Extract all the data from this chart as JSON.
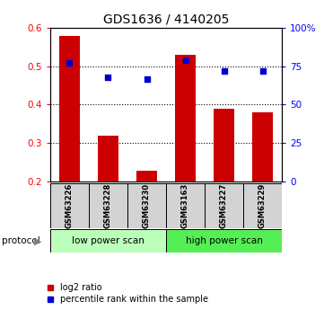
{
  "title": "GDS1636 / 4140205",
  "samples": [
    "GSM63226",
    "GSM63228",
    "GSM63230",
    "GSM63163",
    "GSM63227",
    "GSM63229"
  ],
  "bar_values": [
    0.578,
    0.32,
    0.228,
    0.53,
    0.39,
    0.38
  ],
  "bar_baseline": 0.2,
  "bar_color": "#cc0000",
  "dot_values_pct": [
    77,
    68,
    66.5,
    79,
    72,
    72
  ],
  "dot_color": "#0000cc",
  "ylim_left": [
    0.2,
    0.6
  ],
  "ylim_right": [
    0,
    100
  ],
  "yticks_left": [
    0.2,
    0.3,
    0.4,
    0.5,
    0.6
  ],
  "yticks_right": [
    0,
    25,
    50,
    75,
    100
  ],
  "ytick_labels_right": [
    "0",
    "25",
    "50",
    "75",
    "100%"
  ],
  "protocol_labels": [
    "low power scan",
    "high power scan"
  ],
  "protocol_color_low": "#bbffbb",
  "protocol_color_high": "#55ee55",
  "label_bar": "log2 ratio",
  "label_dot": "percentile rank within the sample",
  "fig_width": 3.61,
  "fig_height": 3.45,
  "dpi": 100
}
